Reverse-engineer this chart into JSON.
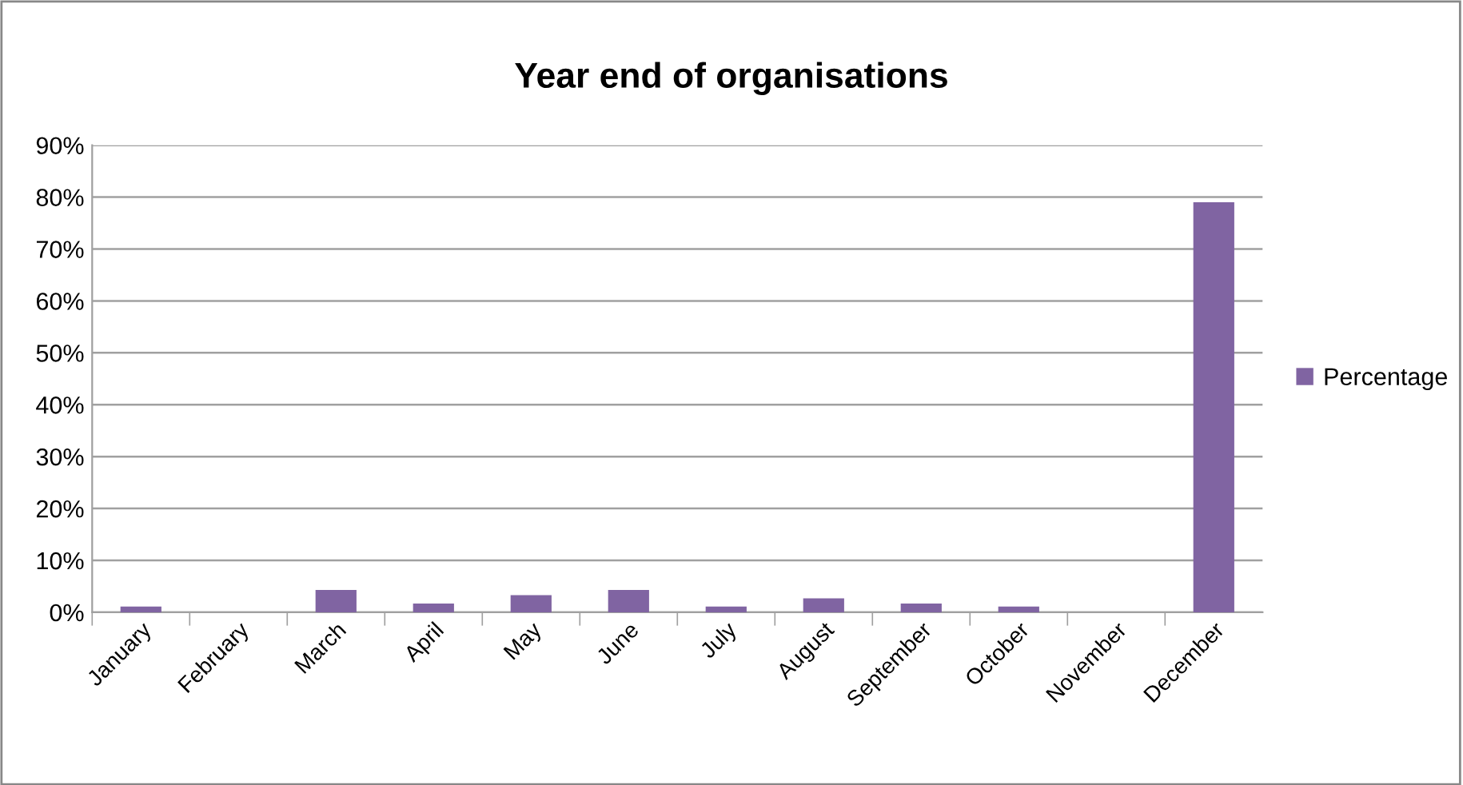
{
  "chart_data": {
    "type": "bar",
    "title": "Year end of organisations",
    "categories": [
      "January",
      "February",
      "March",
      "April",
      "May",
      "June",
      "July",
      "August",
      "September",
      "October",
      "November",
      "December"
    ],
    "series": [
      {
        "name": "Percentage",
        "color": "#8064a2",
        "values": [
          1.1,
          0,
          4.3,
          1.7,
          3.3,
          4.3,
          1.1,
          2.7,
          1.7,
          1.1,
          0,
          79
        ]
      }
    ],
    "ylim": [
      0,
      90
    ],
    "yticks": [
      {
        "value": 0,
        "label": "0%"
      },
      {
        "value": 10,
        "label": "10%"
      },
      {
        "value": 20,
        "label": "20%"
      },
      {
        "value": 30,
        "label": "30%"
      },
      {
        "value": 40,
        "label": "40%"
      },
      {
        "value": 50,
        "label": "50%"
      },
      {
        "value": 60,
        "label": "60%"
      },
      {
        "value": 70,
        "label": "70%"
      },
      {
        "value": 80,
        "label": "80%"
      },
      {
        "value": 90,
        "label": "90%"
      }
    ],
    "grid": "y",
    "legend": "right"
  }
}
